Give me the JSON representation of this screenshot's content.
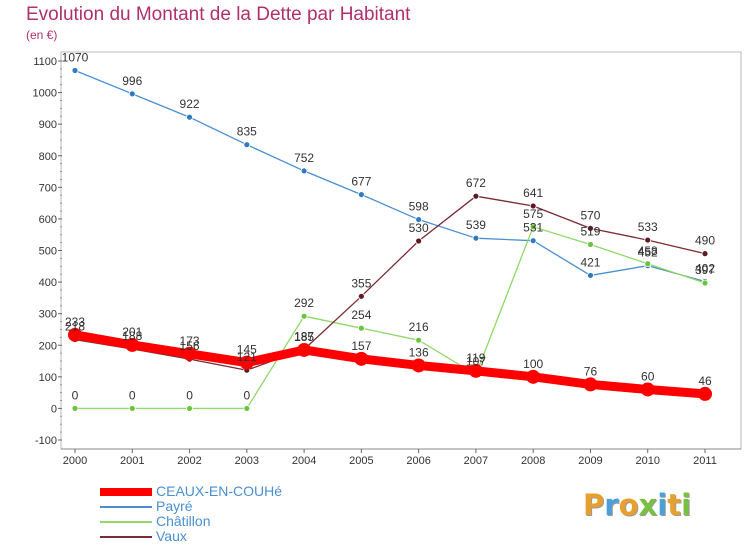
{
  "title": "Evolution du Montant de la Dette par Habitant",
  "unit": "(en €)",
  "logo": {
    "text": "Proxiti",
    "letters": [
      "P",
      "r",
      "o",
      "x",
      "i",
      "t",
      "i"
    ],
    "colors": [
      "#e8a02c",
      "#4aa0d8",
      "#e8a02c",
      "#78c040",
      "#4aa0d8",
      "#e8a02c",
      "#78c040"
    ]
  },
  "chart_data": {
    "type": "line",
    "title": "Evolution du Montant de la Dette par Habitant",
    "subtitle": "(en €)",
    "categories": [
      "2000",
      "2001",
      "2002",
      "2003",
      "2004",
      "2005",
      "2006",
      "2007",
      "2008",
      "2009",
      "2010",
      "2011"
    ],
    "ylim": [
      -100,
      1100
    ],
    "yticks": [
      "1100",
      "1000",
      "900",
      "800",
      "700",
      "600",
      "500",
      "400",
      "300",
      "200",
      "100",
      "0",
      "-100"
    ],
    "grid": false,
    "legend_position": "bottom-left",
    "series": [
      {
        "name": "Payré",
        "color": "#4a8fd0",
        "marker": "#2f7bc0",
        "values": [
          1070,
          996,
          922,
          835,
          752,
          677,
          598,
          539,
          531,
          421,
          452,
          402
        ]
      },
      {
        "name": "Châtillon",
        "color": "#8fd86a",
        "marker": "#6cc43e",
        "values": [
          0,
          0,
          0,
          0,
          292,
          254,
          216,
          107,
          575,
          519,
          458,
          397
        ]
      },
      {
        "name": "Vaux",
        "color": "#7a2a34",
        "marker": "#5e1a24",
        "values": [
          218,
          188,
          156,
          121,
          187,
          355,
          530,
          672,
          641,
          570,
          533,
          490
        ]
      },
      {
        "name": "CEAUX-EN-COUHé",
        "color": "#ff0000",
        "marker": "#ff0000",
        "values": [
          233,
          201,
          173,
          145,
          185,
          157,
          136,
          119,
          100,
          76,
          60,
          46
        ]
      }
    ],
    "legend_order": [
      "CEAUX-EN-COUHé",
      "Payré",
      "Châtillon",
      "Vaux"
    ]
  }
}
